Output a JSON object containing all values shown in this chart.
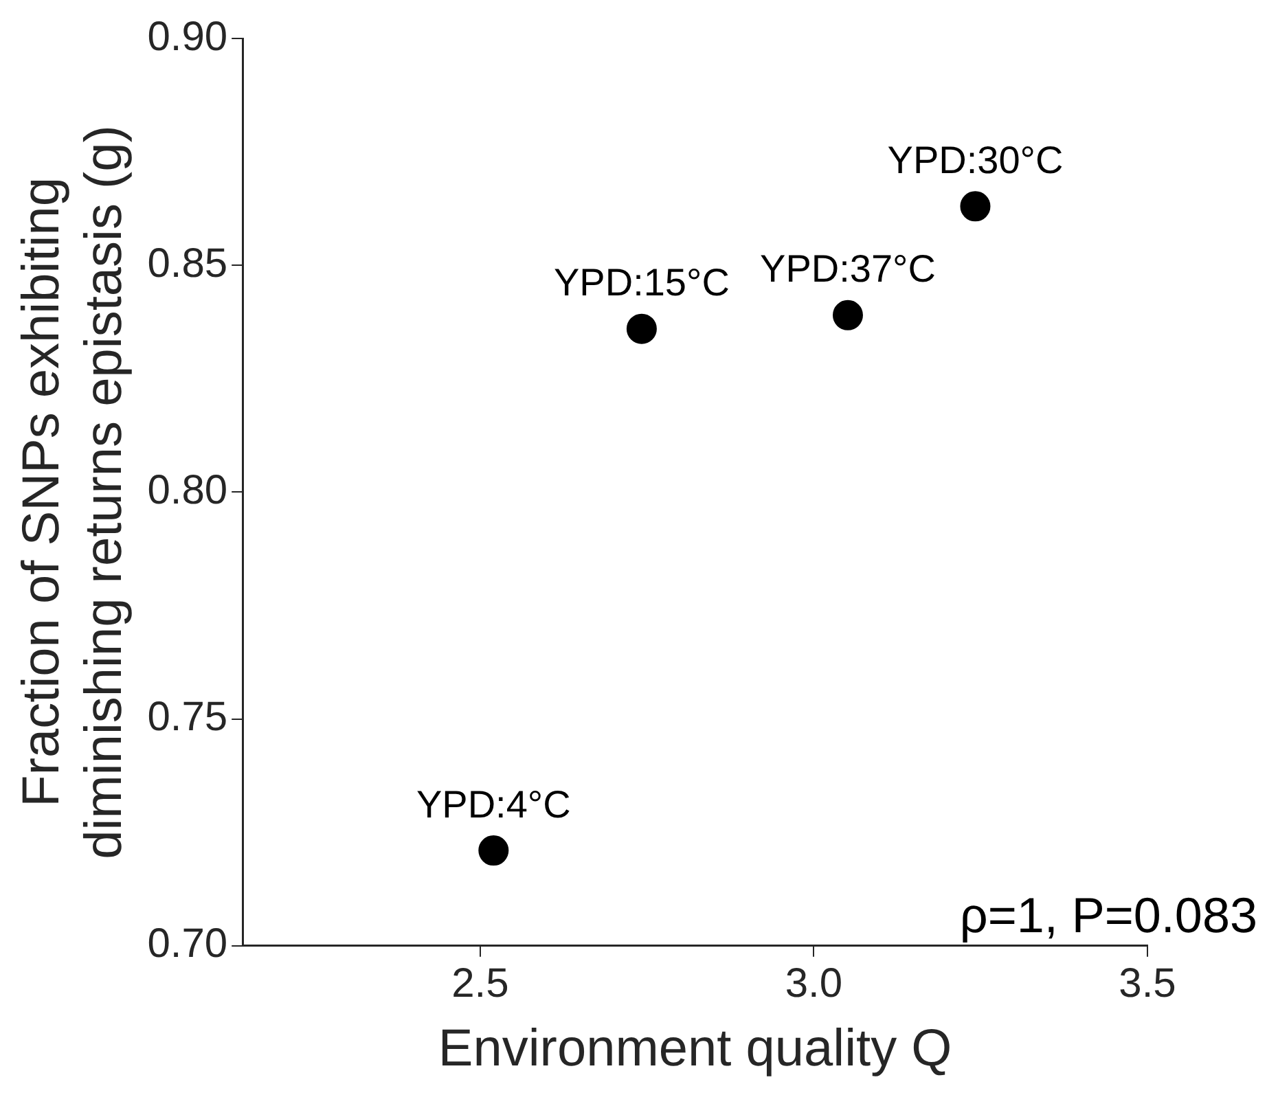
{
  "chart_data": {
    "type": "scatter",
    "xlabel": "Environment quality Q",
    "ylabel": "Fraction of SNPs exhibiting\ndiminishing returns epistasis (g)",
    "x": [
      2.52,
      2.742,
      3.051,
      3.242
    ],
    "series": [
      {
        "color": "#000000",
        "values": [
          0.721,
          0.836,
          0.839,
          0.863
        ]
      }
    ],
    "marker": "circle",
    "grid": false,
    "legend": false,
    "xlim": [
      2.144,
      3.5
    ],
    "xticks": [
      2.5,
      {
        "value": 3.0,
        "label": "3.0"
      },
      3.5
    ],
    "ylim": [
      0.7,
      0.9
    ],
    "yticks": [
      {
        "value": 0.7,
        "label": "0.70"
      },
      {
        "value": 0.75,
        "label": "0.75"
      },
      {
        "value": 0.8,
        "label": "0.80"
      },
      {
        "value": 0.85,
        "label": "0.85"
      },
      {
        "value": 0.9,
        "label": "0.90"
      }
    ],
    "annotations": [
      {
        "text": "YPD:4°C",
        "x": 2.52,
        "y": 0.721
      },
      {
        "text": "YPD:15°C",
        "x": 2.742,
        "y": 0.836
      },
      {
        "text": "YPD:37°C",
        "x": 3.051,
        "y": 0.839
      },
      {
        "text": "YPD:30°C",
        "x": 3.242,
        "y": 0.863
      },
      "ρ=1, P=0.083"
    ]
  }
}
